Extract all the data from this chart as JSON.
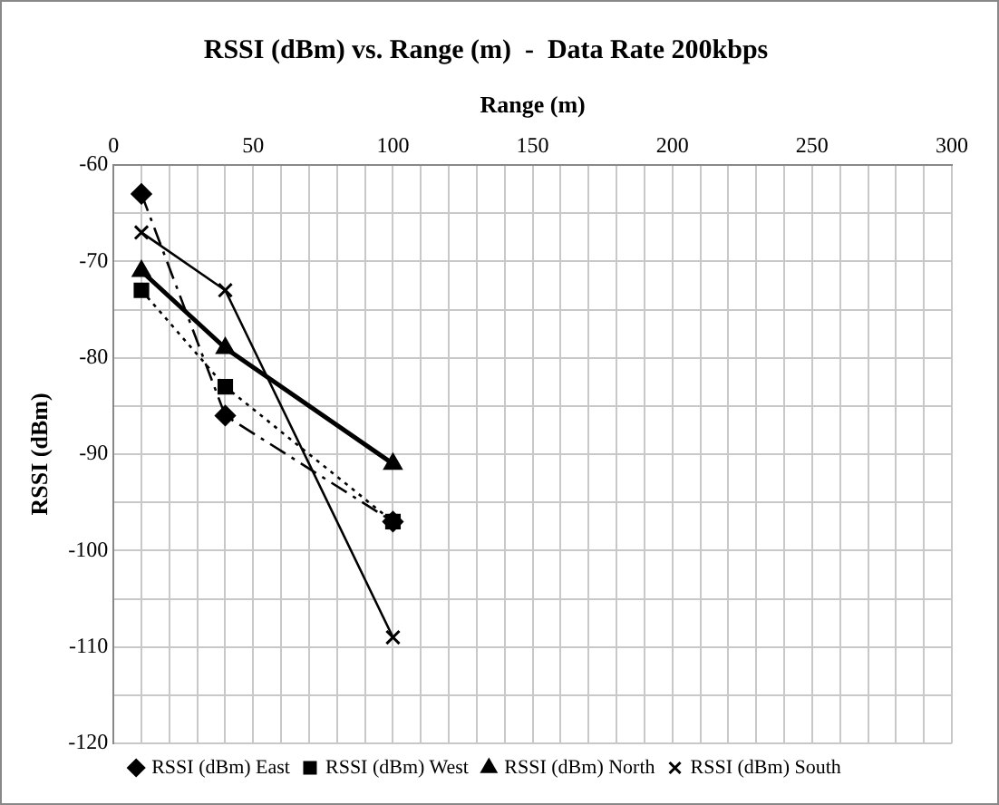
{
  "chart_data": {
    "type": "line",
    "title": "RSSI (dBm) vs. Range (m)  -  Data Rate 200kbps",
    "xlabel": "Range (m)",
    "ylabel": "RSSI (dBm)",
    "xlim": [
      0,
      300
    ],
    "xticks": [
      0,
      {
        "value": 10,
        "label": null
      },
      {
        "value": 20,
        "label": null
      },
      {
        "value": 30,
        "label": null
      },
      {
        "value": 40,
        "label": null
      },
      50,
      {
        "value": 60,
        "label": null
      },
      {
        "value": 70,
        "label": null
      },
      {
        "value": 80,
        "label": null
      },
      {
        "value": 90,
        "label": null
      },
      100,
      {
        "value": 110,
        "label": null
      },
      {
        "value": 120,
        "label": null
      },
      {
        "value": 130,
        "label": null
      },
      {
        "value": 140,
        "label": null
      },
      150,
      {
        "value": 160,
        "label": null
      },
      {
        "value": 170,
        "label": null
      },
      {
        "value": 180,
        "label": null
      },
      {
        "value": 190,
        "label": null
      },
      200,
      {
        "value": 210,
        "label": null
      },
      {
        "value": 220,
        "label": null
      },
      {
        "value": 230,
        "label": null
      },
      {
        "value": 240,
        "label": null
      },
      250,
      {
        "value": 260,
        "label": null
      },
      {
        "value": 270,
        "label": null
      },
      {
        "value": 280,
        "label": null
      },
      {
        "value": 290,
        "label": null
      },
      300
    ],
    "ylim": [
      -120,
      -60
    ],
    "yticks": [
      -120,
      {
        "value": -115,
        "label": null
      },
      -110,
      {
        "value": -105,
        "label": null
      },
      -100,
      {
        "value": -95,
        "label": null
      },
      -90,
      {
        "value": -85,
        "label": null
      },
      -80,
      {
        "value": -75,
        "label": null
      },
      -70,
      {
        "value": -65,
        "label": null
      },
      -60
    ],
    "x": [
      10,
      40,
      100
    ],
    "grid": true,
    "legend": "bottom",
    "series": [
      {
        "name": "RSSI (dBm) East",
        "color": "#000000",
        "values": [
          -63,
          -86,
          -97
        ],
        "marker": "diamond",
        "line_style": "dashdot"
      },
      {
        "name": "RSSI (dBm) West",
        "color": "#000000",
        "values": [
          -73,
          -83,
          -97
        ],
        "marker": "square",
        "line_style": "dotted"
      },
      {
        "name": "RSSI (dBm) North",
        "color": "#000000",
        "values": [
          -71,
          -79,
          -91
        ],
        "marker": "triangle",
        "line_style": "solid"
      },
      {
        "name": "RSSI (dBm) South",
        "color": "#000000",
        "values": [
          -67,
          -73,
          -109
        ],
        "marker": "cross",
        "line_style": "solid"
      }
    ]
  }
}
